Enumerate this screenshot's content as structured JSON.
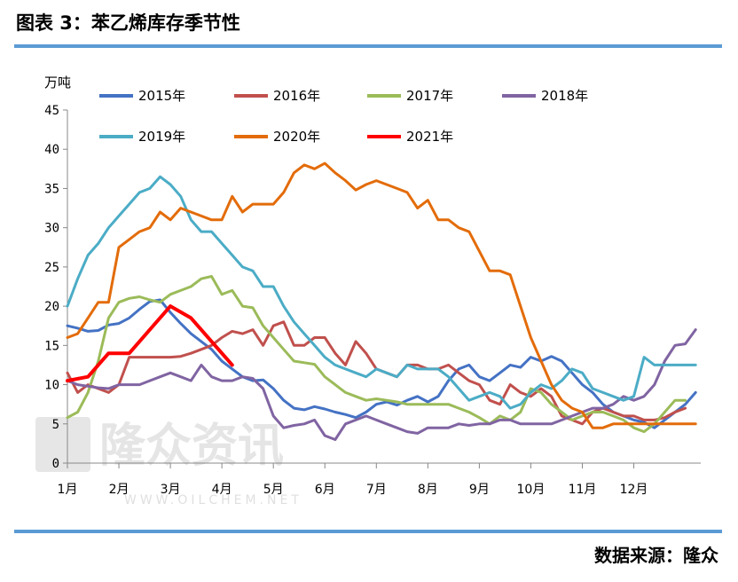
{
  "figure_title": "图表 3：苯乙烯库存季节性",
  "source": "数据来源：隆众",
  "watermark": {
    "text": "隆众资讯",
    "url": "WWW.OILCHEM.NET"
  },
  "chart_data": {
    "type": "line",
    "title": "",
    "ylabel": "万吨",
    "xlabel": "",
    "ylim": [
      0,
      45
    ],
    "yticks": [
      0,
      5,
      10,
      15,
      20,
      25,
      30,
      35,
      40,
      45
    ],
    "xlim": [
      1,
      13.3
    ],
    "categories": [
      "1月",
      "2月",
      "3月",
      "4月",
      "5月",
      "6月",
      "7月",
      "8月",
      "9月",
      "10月",
      "11月",
      "12月"
    ],
    "grid": false,
    "legend": "top",
    "series": [
      {
        "name": "2015年",
        "color": "#4472c4",
        "x": [
          1.0,
          1.2,
          1.4,
          1.6,
          1.8,
          2.0,
          2.2,
          2.4,
          2.6,
          2.8,
          3.0,
          3.2,
          3.4,
          3.6,
          3.8,
          4.0,
          4.2,
          4.4,
          4.6,
          4.8,
          5.0,
          5.2,
          5.4,
          5.6,
          5.8,
          6.0,
          6.2,
          6.4,
          6.6,
          6.8,
          7.0,
          7.2,
          7.4,
          7.6,
          7.8,
          8.0,
          8.2,
          8.4,
          8.6,
          8.8,
          9.0,
          9.2,
          9.4,
          9.6,
          9.8,
          10.0,
          10.2,
          10.4,
          10.6,
          10.8,
          11.0,
          11.2,
          11.4,
          11.6,
          11.8,
          12.0,
          12.2,
          12.4,
          12.6,
          12.8,
          13.0,
          13.2
        ],
        "y": [
          17.5,
          17.2,
          16.8,
          16.9,
          17.6,
          17.8,
          18.5,
          19.6,
          20.6,
          20.8,
          19.2,
          17.8,
          16.5,
          15.5,
          14.5,
          13.0,
          12.0,
          11.0,
          10.5,
          10.6,
          9.5,
          8.0,
          7.0,
          6.8,
          7.2,
          6.9,
          6.5,
          6.2,
          5.8,
          6.5,
          7.5,
          7.8,
          7.4,
          8.0,
          8.5,
          7.8,
          8.5,
          10.5,
          12.0,
          12.5,
          11.0,
          10.5,
          11.5,
          12.5,
          12.2,
          13.5,
          13.0,
          13.6,
          13.0,
          11.5,
          10.0,
          9.0,
          7.5,
          6.5,
          6.0,
          5.5,
          5.2,
          4.5,
          5.5,
          6.5,
          7.5,
          9.0
        ]
      },
      {
        "name": "2016年",
        "color": "#c0504d",
        "x": [
          1.0,
          1.2,
          1.4,
          1.6,
          1.8,
          2.0,
          2.2,
          2.4,
          2.6,
          2.8,
          3.0,
          3.2,
          3.4,
          3.6,
          3.8,
          4.0,
          4.2,
          4.4,
          4.6,
          4.8,
          5.0,
          5.2,
          5.4,
          5.6,
          5.8,
          6.0,
          6.2,
          6.4,
          6.6,
          6.8,
          7.0,
          7.2,
          7.4,
          7.6,
          7.8,
          8.0,
          8.2,
          8.4,
          8.6,
          8.8,
          9.0,
          9.2,
          9.4,
          9.6,
          9.8,
          10.0,
          10.2,
          10.4,
          10.6,
          10.8,
          11.0,
          11.2,
          11.4,
          11.6,
          11.8,
          12.0,
          12.2,
          12.4,
          12.6,
          12.8,
          13.0
        ],
        "y": [
          11.5,
          9.0,
          10.0,
          9.5,
          9.0,
          10.0,
          13.5,
          13.5,
          13.5,
          13.5,
          13.5,
          13.6,
          14.0,
          14.5,
          15.0,
          16.0,
          16.8,
          16.5,
          17.0,
          15.0,
          17.5,
          18.0,
          15.0,
          15.0,
          16.0,
          16.0,
          14.0,
          12.5,
          15.5,
          14.0,
          12.0,
          11.5,
          11.0,
          12.5,
          12.5,
          12.0,
          12.0,
          12.5,
          11.5,
          10.5,
          10.0,
          8.0,
          7.5,
          10.0,
          9.0,
          8.5,
          9.5,
          8.5,
          6.0,
          5.5,
          5.0,
          6.5,
          7.0,
          6.5,
          6.0,
          6.0,
          5.5,
          5.5,
          5.8,
          6.5,
          7.0
        ]
      },
      {
        "name": "2017年",
        "color": "#9bbb59",
        "x": [
          1.0,
          1.2,
          1.4,
          1.6,
          1.8,
          2.0,
          2.2,
          2.4,
          2.6,
          2.8,
          3.0,
          3.2,
          3.4,
          3.6,
          3.8,
          4.0,
          4.2,
          4.4,
          4.6,
          4.8,
          5.0,
          5.2,
          5.4,
          5.6,
          5.8,
          6.0,
          6.2,
          6.4,
          6.6,
          6.8,
          7.0,
          7.2,
          7.4,
          7.6,
          7.8,
          8.0,
          8.2,
          8.4,
          8.6,
          8.8,
          9.0,
          9.2,
          9.4,
          9.6,
          9.8,
          10.0,
          10.2,
          10.4,
          10.6,
          10.8,
          11.0,
          11.2,
          11.4,
          11.6,
          11.8,
          12.0,
          12.2,
          12.4,
          12.6,
          12.8,
          13.0
        ],
        "y": [
          5.8,
          6.5,
          9.0,
          13.0,
          18.5,
          20.5,
          21.0,
          21.2,
          20.8,
          20.5,
          21.5,
          22.0,
          22.5,
          23.5,
          23.8,
          21.5,
          22.0,
          20.0,
          19.8,
          17.5,
          16.0,
          14.5,
          13.0,
          12.8,
          12.6,
          11.0,
          10.0,
          9.0,
          8.5,
          8.0,
          8.2,
          8.0,
          7.8,
          7.5,
          7.5,
          7.5,
          7.5,
          7.5,
          7.0,
          6.5,
          5.8,
          5.0,
          6.0,
          5.5,
          6.5,
          9.5,
          9.0,
          7.5,
          6.5,
          5.5,
          6.0,
          6.5,
          6.5,
          6.0,
          5.5,
          4.5,
          4.0,
          5.0,
          6.5,
          8.0,
          8.0
        ]
      },
      {
        "name": "2018年",
        "color": "#8064a2",
        "x": [
          1.0,
          1.2,
          1.4,
          1.6,
          1.8,
          2.0,
          2.2,
          2.4,
          2.6,
          2.8,
          3.0,
          3.2,
          3.4,
          3.6,
          3.8,
          4.0,
          4.2,
          4.4,
          4.6,
          4.8,
          5.0,
          5.2,
          5.4,
          5.6,
          5.8,
          6.0,
          6.2,
          6.4,
          6.6,
          6.8,
          7.0,
          7.2,
          7.4,
          7.6,
          7.8,
          8.0,
          8.2,
          8.4,
          8.6,
          8.8,
          9.0,
          9.2,
          9.4,
          9.6,
          9.8,
          10.0,
          10.2,
          10.4,
          10.6,
          10.8,
          11.0,
          11.2,
          11.4,
          11.6,
          11.8,
          12.0,
          12.2,
          12.4,
          12.6,
          12.8,
          13.0,
          13.2
        ],
        "y": [
          10.5,
          10.0,
          9.8,
          9.6,
          9.5,
          10.0,
          10.0,
          10.0,
          10.5,
          11.0,
          11.5,
          11.0,
          10.5,
          12.5,
          11.0,
          10.5,
          10.5,
          11.0,
          10.8,
          9.5,
          6.0,
          4.5,
          4.8,
          5.0,
          5.5,
          3.5,
          3.0,
          5.0,
          5.5,
          6.0,
          5.5,
          5.0,
          4.5,
          4.0,
          3.8,
          4.5,
          4.5,
          4.5,
          5.0,
          4.8,
          5.0,
          5.0,
          5.5,
          5.5,
          5.0,
          5.0,
          5.0,
          5.0,
          5.5,
          6.0,
          6.5,
          7.0,
          7.0,
          7.5,
          8.5,
          8.0,
          8.5,
          10.0,
          13.0,
          15.0,
          15.2,
          17.0
        ]
      },
      {
        "name": "2019年",
        "color": "#4bacc6",
        "x": [
          1.0,
          1.2,
          1.4,
          1.6,
          1.8,
          2.0,
          2.2,
          2.4,
          2.6,
          2.8,
          3.0,
          3.2,
          3.4,
          3.6,
          3.8,
          4.0,
          4.2,
          4.4,
          4.6,
          4.8,
          5.0,
          5.2,
          5.4,
          5.6,
          5.8,
          6.0,
          6.2,
          6.4,
          6.6,
          6.8,
          7.0,
          7.2,
          7.4,
          7.6,
          7.8,
          8.0,
          8.2,
          8.4,
          8.6,
          8.8,
          9.0,
          9.2,
          9.4,
          9.6,
          9.8,
          10.0,
          10.2,
          10.4,
          10.6,
          10.8,
          11.0,
          11.2,
          11.4,
          11.6,
          11.8,
          12.0,
          12.2,
          12.4,
          12.6,
          12.8,
          13.0,
          13.2
        ],
        "y": [
          20.0,
          23.5,
          26.5,
          28.0,
          30.0,
          31.5,
          33.0,
          34.5,
          35.0,
          36.5,
          35.5,
          34.0,
          31.0,
          29.5,
          29.5,
          28.0,
          26.5,
          25.0,
          24.5,
          22.5,
          22.5,
          20.0,
          18.0,
          16.5,
          15.0,
          13.5,
          12.5,
          12.0,
          11.5,
          11.0,
          12.0,
          11.5,
          11.0,
          12.5,
          12.0,
          12.0,
          12.0,
          11.0,
          9.5,
          8.0,
          8.5,
          9.0,
          8.5,
          7.0,
          7.5,
          9.0,
          10.0,
          9.5,
          10.5,
          12.0,
          11.5,
          9.5,
          9.0,
          8.5,
          8.0,
          8.5,
          13.5,
          12.5,
          12.5,
          12.5,
          12.5,
          12.5
        ]
      },
      {
        "name": "2020年",
        "color": "#e36c0a",
        "x": [
          1.0,
          1.2,
          1.4,
          1.6,
          1.8,
          2.0,
          2.2,
          2.4,
          2.6,
          2.8,
          3.0,
          3.2,
          3.4,
          3.6,
          3.8,
          4.0,
          4.2,
          4.4,
          4.6,
          4.8,
          5.0,
          5.2,
          5.4,
          5.6,
          5.8,
          6.0,
          6.2,
          6.4,
          6.6,
          6.8,
          7.0,
          7.2,
          7.4,
          7.6,
          7.8,
          8.0,
          8.2,
          8.4,
          8.6,
          8.8,
          9.0,
          9.2,
          9.4,
          9.6,
          9.8,
          10.0,
          10.2,
          10.4,
          10.6,
          10.8,
          11.0,
          11.2,
          11.4,
          11.6,
          11.8,
          12.0,
          12.2,
          12.4,
          12.6,
          12.8,
          13.0,
          13.2
        ],
        "y": [
          16.0,
          16.5,
          18.5,
          20.5,
          20.5,
          27.5,
          28.5,
          29.5,
          30.0,
          32.0,
          31.0,
          32.5,
          32.0,
          31.5,
          31.0,
          31.0,
          34.0,
          32.0,
          33.0,
          33.0,
          33.0,
          34.5,
          37.0,
          38.0,
          37.5,
          38.2,
          37.0,
          36.0,
          34.8,
          35.5,
          36.0,
          35.5,
          35.0,
          34.5,
          32.5,
          33.5,
          31.0,
          31.0,
          30.0,
          29.5,
          27.0,
          24.5,
          24.5,
          24.0,
          20.0,
          16.0,
          13.0,
          10.0,
          8.0,
          7.0,
          6.5,
          4.5,
          4.5,
          5.0,
          5.0,
          5.0,
          5.0,
          5.0,
          5.0,
          5.0,
          5.0,
          5.0
        ]
      },
      {
        "name": "2021年",
        "color": "#ff0000",
        "x": [
          1.0,
          1.4,
          1.8,
          2.2,
          2.6,
          3.0,
          3.4,
          3.8,
          4.2
        ],
        "y": [
          10.5,
          11.0,
          14.0,
          14.0,
          17.0,
          20.0,
          18.5,
          15.5,
          12.5
        ]
      }
    ]
  }
}
